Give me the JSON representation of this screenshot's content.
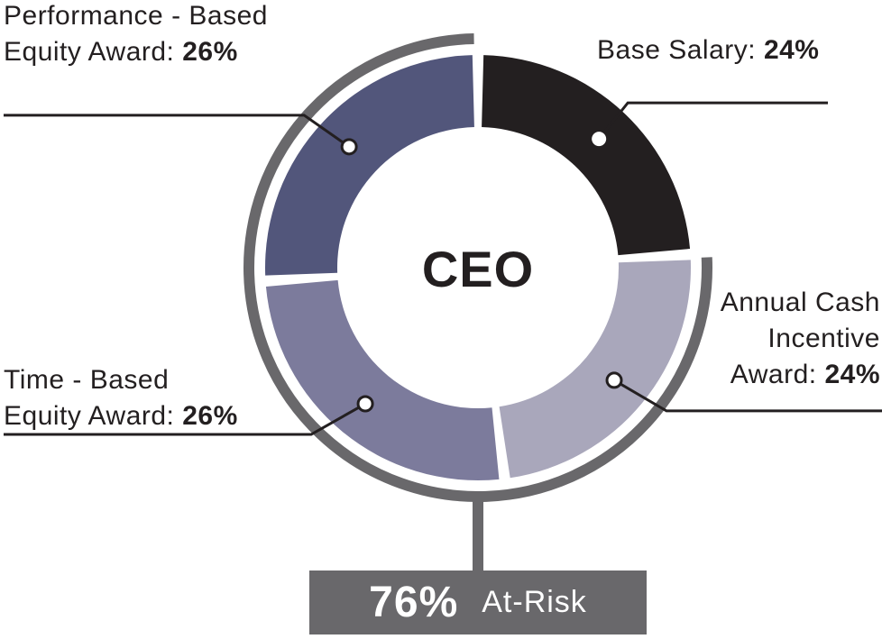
{
  "chart_data": {
    "type": "pie",
    "center_label": "CEO",
    "colors": [
      "#231f20",
      "#a9a7bb",
      "#7c7b9c",
      "#52567b"
    ],
    "slices": [
      {
        "label": "Base Salary:",
        "value": 24,
        "value_label": "24%",
        "color": "#231f20"
      },
      {
        "label_lines": [
          "Annual Cash",
          "Incentive",
          "Award:"
        ],
        "value": 24,
        "value_label": "24%",
        "color": "#a9a7bb"
      },
      {
        "label_lines": [
          "Time - Based",
          "Equity Award:"
        ],
        "value": 26,
        "value_label": "26%",
        "color": "#7c7b9c"
      },
      {
        "label_lines": [
          "Performance - Based",
          "Equity Award:"
        ],
        "value": 26,
        "value_label": "26%",
        "color": "#52567b"
      }
    ],
    "at_risk": {
      "value": 76,
      "value_label": "76%",
      "label": "At-Risk",
      "color": "#69686b"
    }
  }
}
